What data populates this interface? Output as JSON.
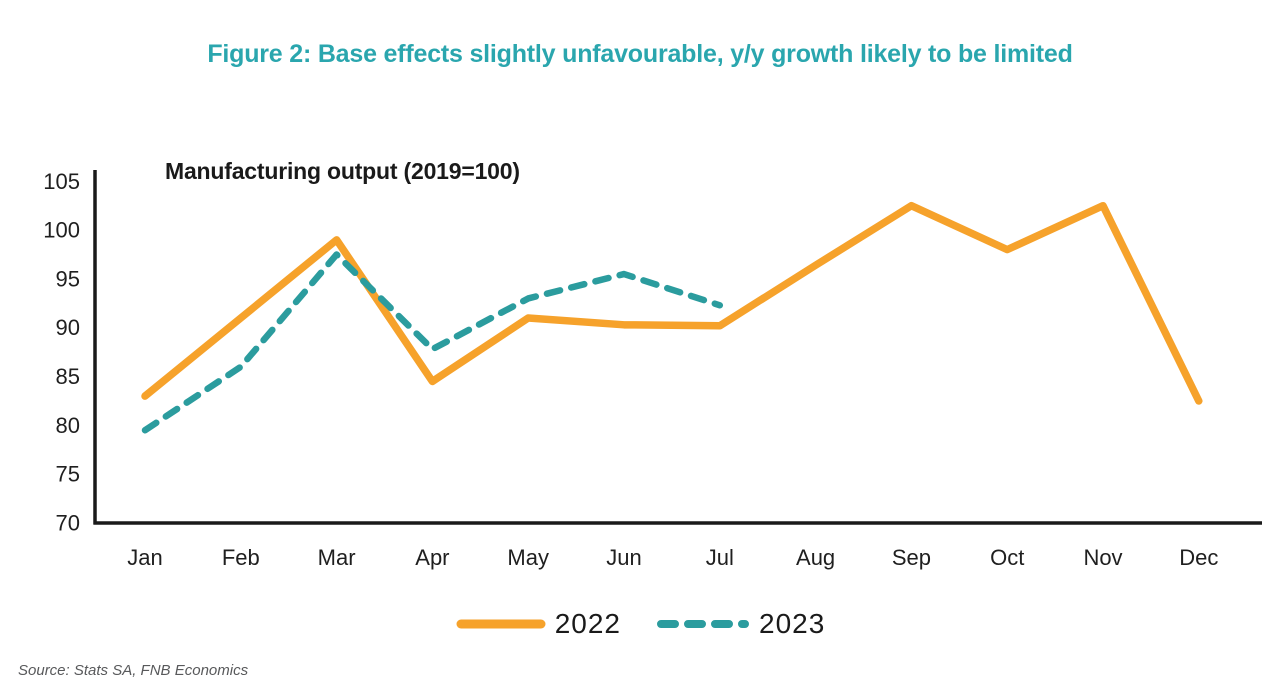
{
  "title": "Figure 2: Base effects slightly unfavourable, y/y growth likely to be limited",
  "source": "Source: Stats SA, FNB Economics",
  "colors": {
    "title_accent": "#2AA6AE",
    "series_2022": "#F6A22B",
    "series_2023": "#2B9C9E",
    "axis": "#1a1a1a",
    "tick_text": "#1f1f1f",
    "source_text": "#58595B"
  },
  "chart_data": {
    "type": "line",
    "title": "Manufacturing output (2019=100)",
    "categories": [
      "Jan",
      "Feb",
      "Mar",
      "Apr",
      "May",
      "Jun",
      "Jul",
      "Aug",
      "Sep",
      "Oct",
      "Nov",
      "Dec"
    ],
    "series": [
      {
        "name": "2022",
        "style": "solid",
        "color": "#F6A22B",
        "values": [
          83,
          91,
          99,
          84.5,
          91,
          90.3,
          90.2,
          96.4,
          102.5,
          98,
          102.5,
          82.5
        ]
      },
      {
        "name": "2023",
        "style": "dashed",
        "color": "#2B9C9E",
        "values": [
          79.5,
          86,
          97.5,
          87.8,
          93,
          95.5,
          92.3,
          null,
          null,
          null,
          null,
          null
        ]
      }
    ],
    "ylim": [
      70,
      105
    ],
    "ytick_step": 5,
    "grid": false,
    "legend_position": "bottom",
    "xlabel": "",
    "ylabel": ""
  }
}
